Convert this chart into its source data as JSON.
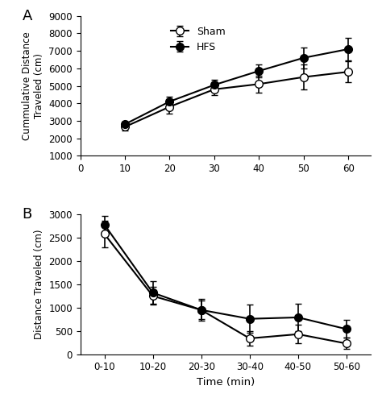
{
  "panel_A": {
    "x": [
      10,
      20,
      30,
      40,
      50,
      60
    ],
    "sham_y": [
      2650,
      3800,
      4800,
      5100,
      5500,
      5800
    ],
    "sham_err": [
      200,
      400,
      350,
      500,
      700,
      600
    ],
    "hfs_y": [
      2800,
      4100,
      5050,
      5850,
      6600,
      7100
    ],
    "hfs_err": [
      150,
      300,
      300,
      350,
      600,
      650
    ],
    "ylabel": "Cummulative Distance\nTraveled (cm)",
    "ylim": [
      1000,
      9000
    ],
    "yticks": [
      1000,
      2000,
      3000,
      4000,
      5000,
      6000,
      7000,
      8000,
      9000
    ],
    "xlim": [
      0,
      65
    ],
    "xticks": [
      0,
      10,
      20,
      30,
      40,
      50,
      60
    ],
    "label": "A"
  },
  "panel_B": {
    "x": [
      1,
      2,
      3,
      4,
      5,
      6
    ],
    "x_labels": [
      "0-10",
      "10-20",
      "20-30",
      "30-40",
      "40-50",
      "50-60"
    ],
    "sham_y": [
      2580,
      1250,
      950,
      340,
      430,
      230
    ],
    "sham_err": [
      280,
      190,
      230,
      150,
      200,
      120
    ],
    "hfs_y": [
      2780,
      1320,
      950,
      760,
      790,
      540
    ],
    "hfs_err": [
      180,
      240,
      200,
      300,
      290,
      190
    ],
    "ylabel": "Distance Traveled (cm)",
    "xlabel": "Time (min)",
    "ylim": [
      0,
      3000
    ],
    "yticks": [
      0,
      500,
      1000,
      1500,
      2000,
      2500,
      3000
    ],
    "label": "B"
  },
  "legend_labels": [
    "Sham",
    "HFS"
  ],
  "sham_color": "white",
  "hfs_color": "black",
  "line_color": "black",
  "marker_size": 7,
  "linewidth": 1.5,
  "capsize": 3,
  "elinewidth": 1.2
}
